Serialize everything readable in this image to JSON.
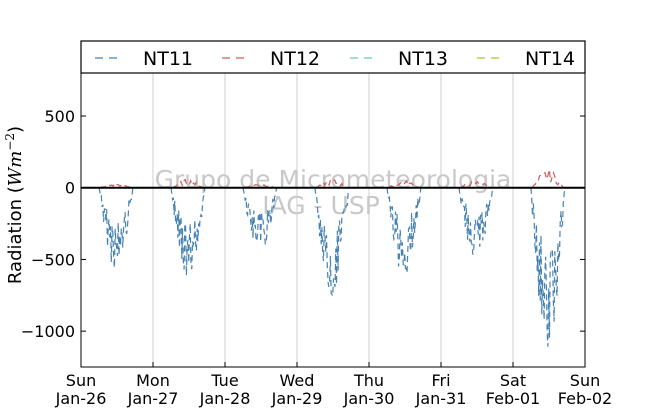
{
  "chart_data": {
    "type": "line",
    "title": "",
    "xlabel": "",
    "ylabel": "Radiation (Wm^-2)",
    "ylabel_parts": {
      "text": "Radiation (",
      "W": "W",
      "m": "m",
      "exp": "−2",
      "close": ")"
    },
    "ylim": [
      -1250,
      800
    ],
    "yticks": [
      500,
      0,
      -500,
      -1000
    ],
    "ytick_labels": [
      "500",
      "0",
      "−500",
      "−1000"
    ],
    "xlim": [
      "2014-01-26",
      "2014-02-02"
    ],
    "xticks": [
      {
        "day": "Sun",
        "date": "Jan-26"
      },
      {
        "day": "Mon",
        "date": "Jan-27"
      },
      {
        "day": "Tue",
        "date": "Jan-28"
      },
      {
        "day": "Wed",
        "date": "Jan-29"
      },
      {
        "day": "Thu",
        "date": "Jan-30"
      },
      {
        "day": "Fri",
        "date": "Jan-31"
      },
      {
        "day": "Sat",
        "date": "Feb-01"
      },
      {
        "day": "Sun",
        "date": "Feb-02"
      }
    ],
    "grid": "vertical",
    "legend_position": "top",
    "zero_line": true,
    "watermark": [
      "Grupo de Micrometeorologia",
      "IAG - USP"
    ],
    "series": [
      {
        "name": "NT11",
        "color": "#4682b4",
        "style": "dashed",
        "daily_min": [
          -570,
          -640,
          -460,
          -760,
          -620,
          -500,
          -1150
        ]
      },
      {
        "name": "NT12",
        "color": "#cd5c5c",
        "style": "dashed",
        "daily_max": [
          30,
          60,
          30,
          60,
          50,
          50,
          130
        ]
      },
      {
        "name": "NT13",
        "color": "#66cdaa",
        "style": "dashed"
      },
      {
        "name": "NT14",
        "color": "#9acd32",
        "style": "dashed"
      }
    ]
  }
}
